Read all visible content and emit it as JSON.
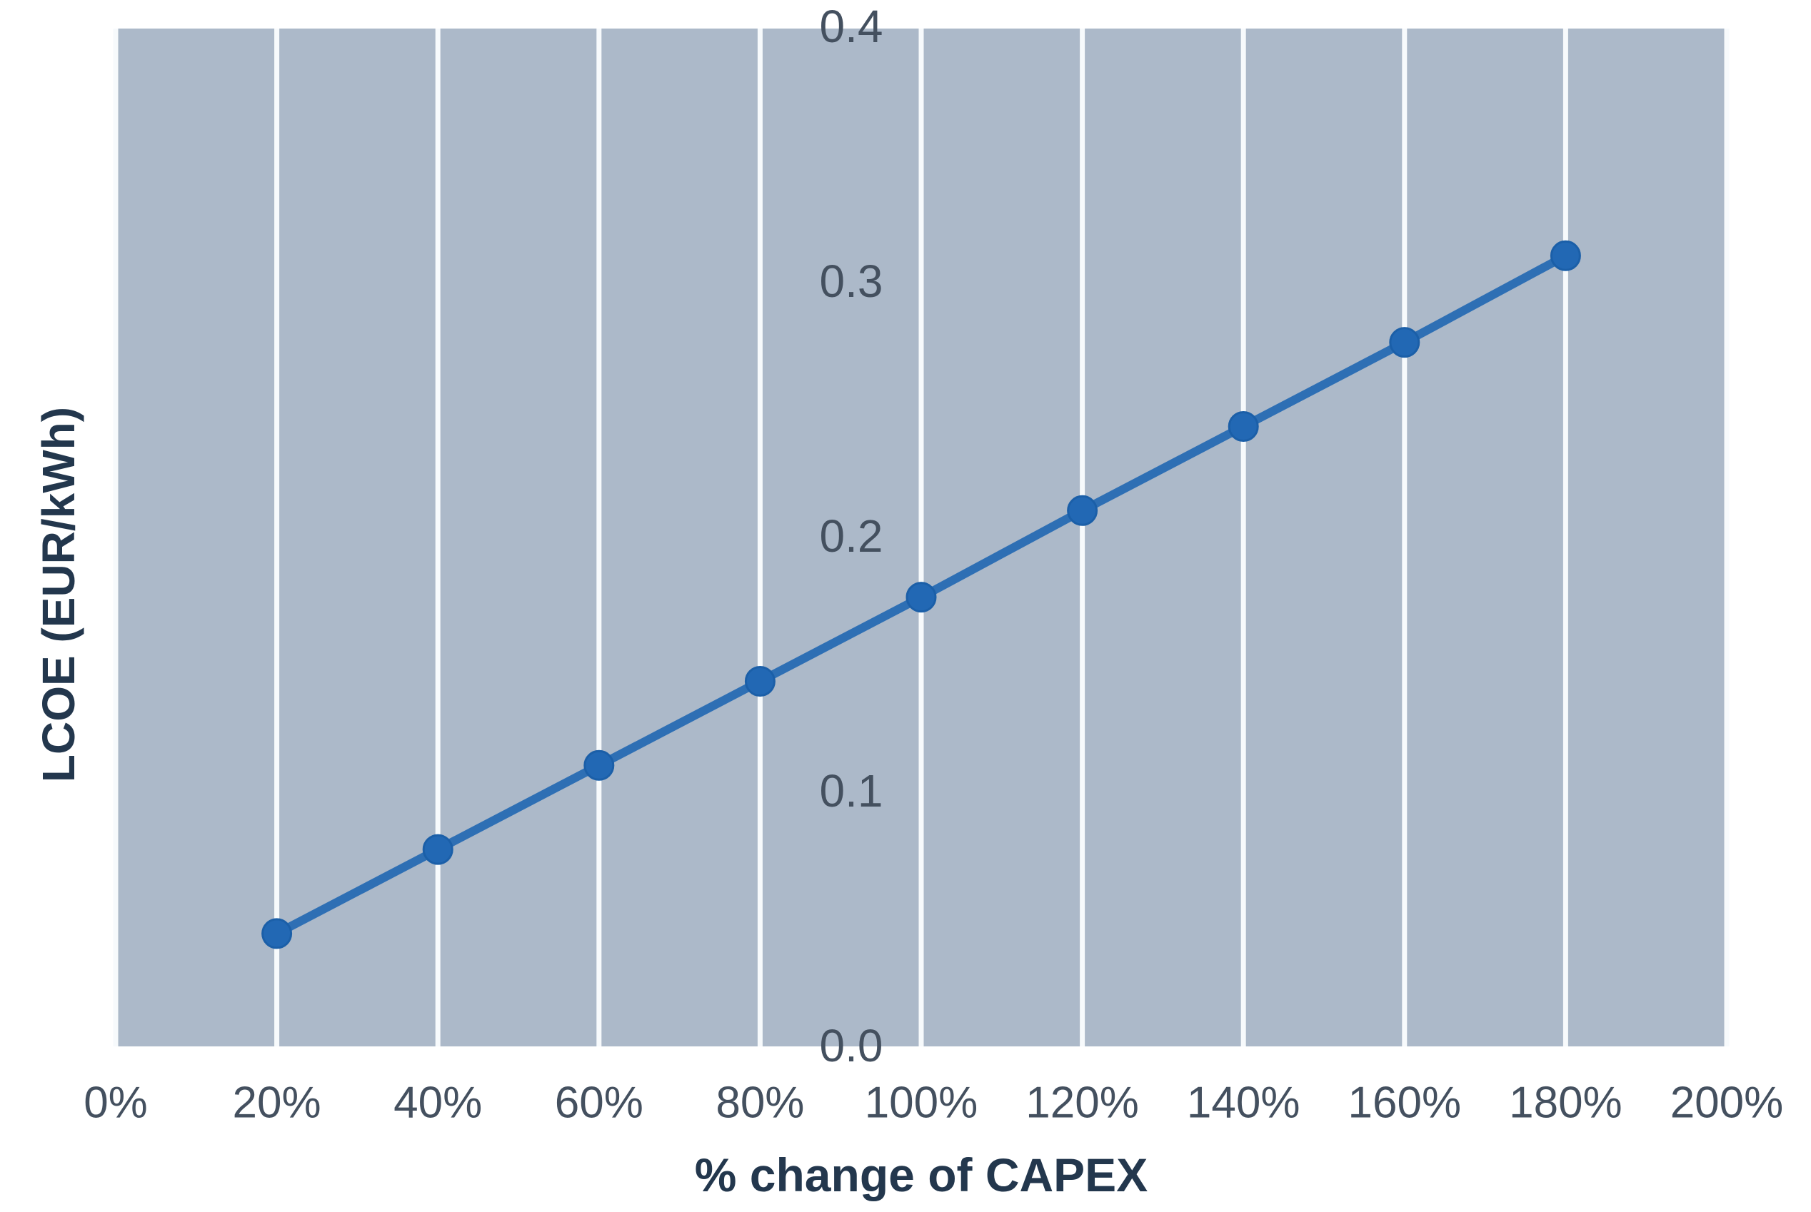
{
  "chart_data": {
    "type": "line",
    "title": "",
    "xlabel": "% change of CAPEX",
    "ylabel": "LCOE (EUR/kWh)",
    "xlim": [
      0,
      200
    ],
    "ylim": [
      0.0,
      0.4
    ],
    "x_tick_values": [
      0,
      20,
      40,
      60,
      80,
      100,
      120,
      140,
      160,
      180,
      200
    ],
    "x_tick_labels": [
      "0%",
      "20%",
      "40%",
      "60%",
      "80%",
      "100%",
      "120%",
      "140%",
      "160%",
      "180%",
      "200%"
    ],
    "y_tick_values": [
      0.0,
      0.1,
      0.2,
      0.3,
      0.4
    ],
    "y_tick_labels": [
      "0.0",
      "0.1",
      "0.2",
      "0.3",
      "0.4"
    ],
    "grid": "vertical-gridlines-only",
    "legend": "none",
    "series": [
      {
        "name": "LCOE",
        "x": [
          20,
          40,
          60,
          80,
          100,
          120,
          140,
          160,
          180
        ],
        "y": [
          0.044,
          0.077,
          0.11,
          0.143,
          0.176,
          0.21,
          0.243,
          0.276,
          0.31
        ],
        "marker": "circle",
        "line_style": "solid"
      }
    ],
    "colors": {
      "page_background": "#FFFFFF",
      "plot_background": "#ACB9C9",
      "gridline": "#F7FAFC",
      "series_line": "#2E6FB4",
      "series_marker": "#2268B4",
      "tick_label": "#44505F",
      "axis_title": "#23374D"
    }
  }
}
